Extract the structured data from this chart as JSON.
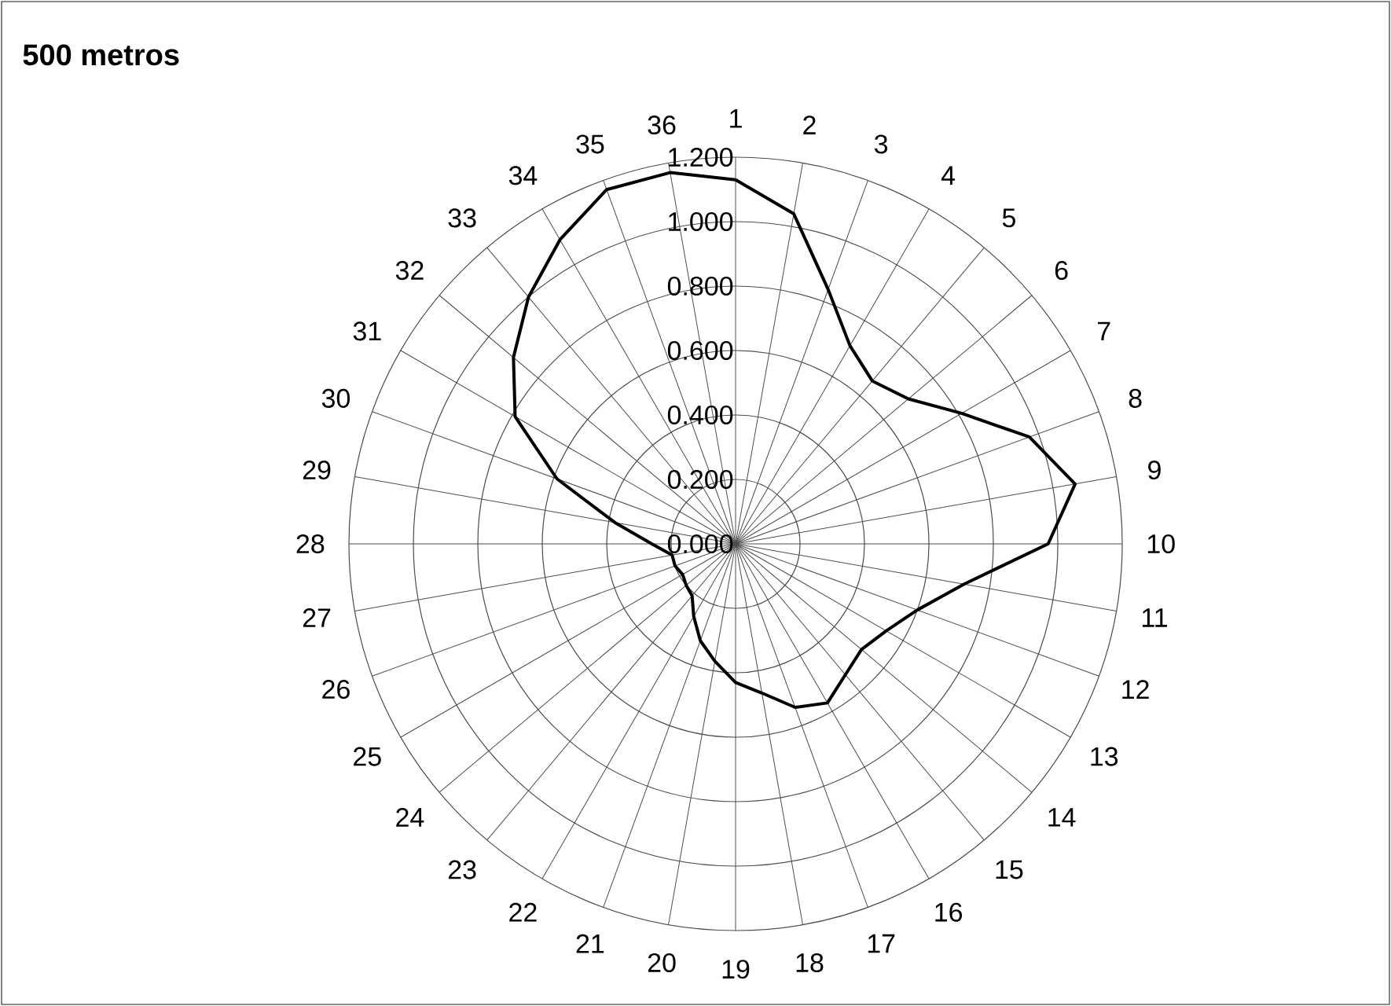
{
  "chart_data": {
    "type": "radar",
    "title": "500 metros",
    "categories": [
      "1",
      "2",
      "3",
      "4",
      "5",
      "6",
      "7",
      "8",
      "9",
      "10",
      "11",
      "12",
      "13",
      "14",
      "15",
      "16",
      "17",
      "18",
      "19",
      "20",
      "21",
      "22",
      "23",
      "24",
      "25",
      "26",
      "27",
      "28",
      "29",
      "30",
      "31",
      "32",
      "33",
      "34",
      "35",
      "36"
    ],
    "series": [
      {
        "color": "#000000",
        "values": [
          1.13,
          1.04,
          0.84,
          0.71,
          0.66,
          0.7,
          0.81,
          0.97,
          1.07,
          0.97,
          0.72,
          0.6,
          0.54,
          0.51,
          0.53,
          0.57,
          0.54,
          0.47,
          0.43,
          0.37,
          0.32,
          0.26,
          0.21,
          0.2,
          0.19,
          0.2,
          0.2,
          0.26,
          0.38,
          0.59,
          0.79,
          0.9,
          1.0,
          1.09,
          1.17,
          1.17
        ]
      }
    ],
    "ylim": [
      0,
      1.2
    ],
    "yticks": [
      {
        "value": 0,
        "label": "0.000"
      },
      {
        "value": 0.2,
        "label": "0.200"
      },
      {
        "value": 0.4,
        "label": "0.400"
      },
      {
        "value": 0.6,
        "label": "0.600"
      },
      {
        "value": 0.8,
        "label": "0.800"
      },
      {
        "value": 1.0,
        "label": "1.000"
      },
      {
        "value": 1.2,
        "label": "1.200"
      }
    ],
    "grid": true
  }
}
